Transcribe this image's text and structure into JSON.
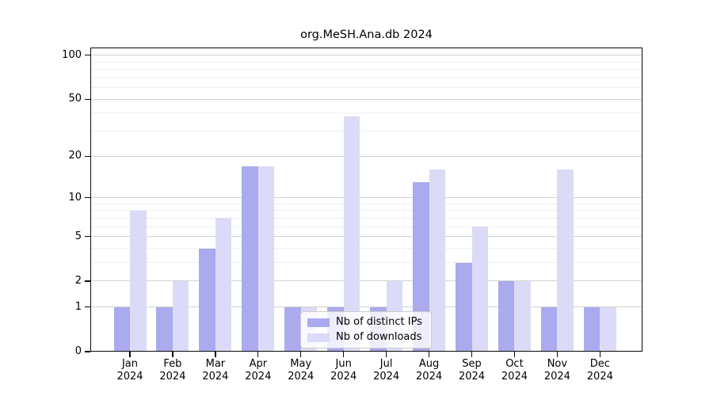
{
  "title": "org.MeSH.Ana.db 2024",
  "chart_data": {
    "type": "bar",
    "title": "org.MeSH.Ana.db 2024",
    "categories": [
      "Jan",
      "Feb",
      "Mar",
      "Apr",
      "May",
      "Jun",
      "Jul",
      "Aug",
      "Sep",
      "Oct",
      "Nov",
      "Dec"
    ],
    "category_year": "2024",
    "series": [
      {
        "name": "Nb of distinct IPs",
        "color": "#aaaaee",
        "values": [
          1,
          1,
          4,
          17,
          1,
          1,
          1,
          13,
          3,
          2,
          1,
          1
        ]
      },
      {
        "name": "Nb of downloads",
        "color": "#dbdbf8",
        "values": [
          8,
          2,
          7,
          17,
          1,
          38,
          2,
          16,
          6,
          2,
          16,
          1
        ]
      }
    ],
    "xlabel": "",
    "ylabel": "",
    "yscale": "log1p",
    "ylim": [
      0,
      113
    ],
    "y_ticks": [
      0,
      1,
      2,
      5,
      10,
      20,
      50,
      100
    ],
    "y_minor_ticks": [
      3,
      4,
      6,
      7,
      8,
      9,
      30,
      40,
      60,
      70,
      80,
      90
    ],
    "grid": true,
    "legend_position": "bottom-center"
  },
  "legend": {
    "items": [
      {
        "label": "Nb of distinct IPs",
        "color": "#aaaaee"
      },
      {
        "label": "Nb of downloads",
        "color": "#dbdbf8"
      }
    ]
  },
  "colors": {
    "grid_major": "#d2d2d2",
    "grid_minor": "#efefef",
    "spine": "#0a0a0a",
    "background": "#ffffff"
  }
}
